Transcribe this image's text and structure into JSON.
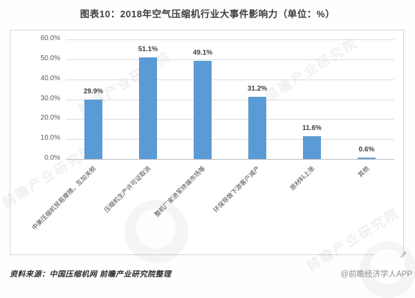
{
  "page": {
    "title": "图表10：2018年空气压缩机行业大事件影响力（单位：%）"
  },
  "chart_data": {
    "type": "bar",
    "title": "2018年空气压缩机行业大事件影响力",
    "unit": "%",
    "categories": [
      "中美压缩机贸易摩擦，互加关税",
      "压缩机生产许可证取消",
      "整机厂家进军终端市场等",
      "环保导致下游客户减产",
      "原材料上涨",
      "其他"
    ],
    "values": [
      29.9,
      51.1,
      49.1,
      31.2,
      11.6,
      0.6
    ],
    "data_labels": [
      "29.9%",
      "51.1%",
      "49.1%",
      "31.2%",
      "11.6%",
      "0.6%"
    ],
    "yticks": [
      "0.0%",
      "10.0%",
      "20.0%",
      "30.0%",
      "40.0%",
      "50.0%",
      "60.0%"
    ],
    "ylim": [
      0,
      60
    ],
    "grid": true,
    "legend_position": "none",
    "bar_color": "#5b9bd5"
  },
  "footer": {
    "source": "资料来源：中国压缩机网 前瞻产业研究院整理",
    "credit": "@前瞻经济学人APP"
  },
  "watermark": {
    "text": "前瞻产业研究院"
  }
}
